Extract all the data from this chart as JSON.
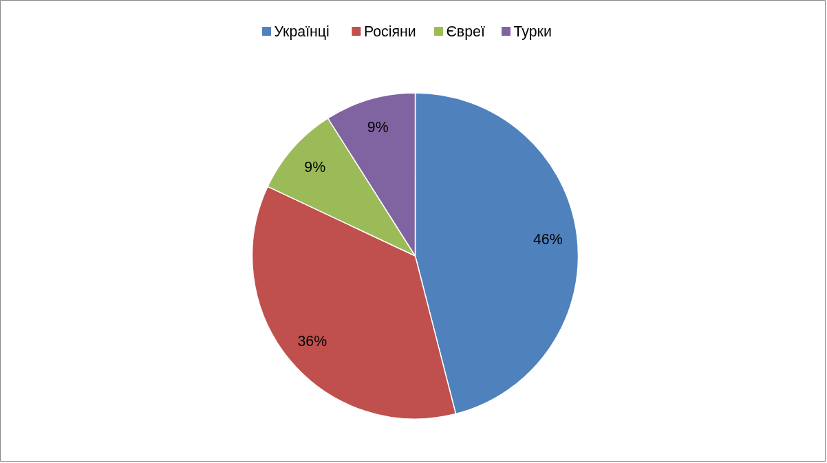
{
  "chart_data": {
    "type": "pie",
    "categories": [
      "Українці",
      "Росіяни",
      "Євреї",
      "Турки"
    ],
    "values": [
      46,
      36,
      9,
      9
    ],
    "colors": [
      "#4f81bd",
      "#c0504d",
      "#9bbb59",
      "#8064a2"
    ],
    "value_labels": [
      "46%",
      "36%",
      "9%",
      "9%"
    ],
    "legend": "top"
  }
}
